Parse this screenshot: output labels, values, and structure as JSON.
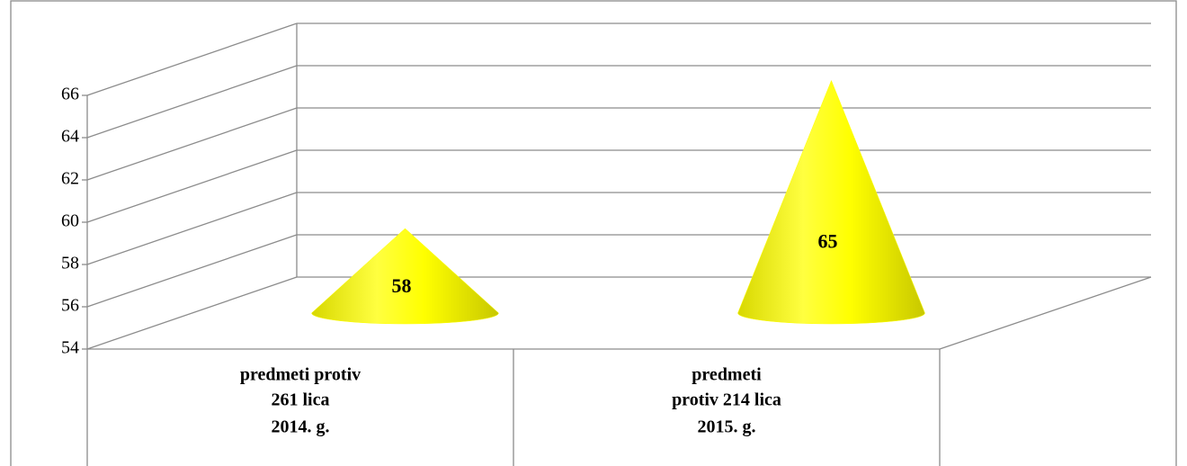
{
  "chart_data": {
    "type": "cone",
    "categories": [
      [
        "predmeti protiv",
        "261 lica"
      ],
      [
        "predmeti",
        "protiv 214 lica"
      ]
    ],
    "groups": [
      "2014. g.",
      "2015. g."
    ],
    "values": [
      58,
      65
    ],
    "color": "#ffff00",
    "ylim": [
      54,
      66
    ],
    "yticks": [
      54,
      56,
      58,
      60,
      62,
      64,
      66
    ],
    "grid": true
  }
}
